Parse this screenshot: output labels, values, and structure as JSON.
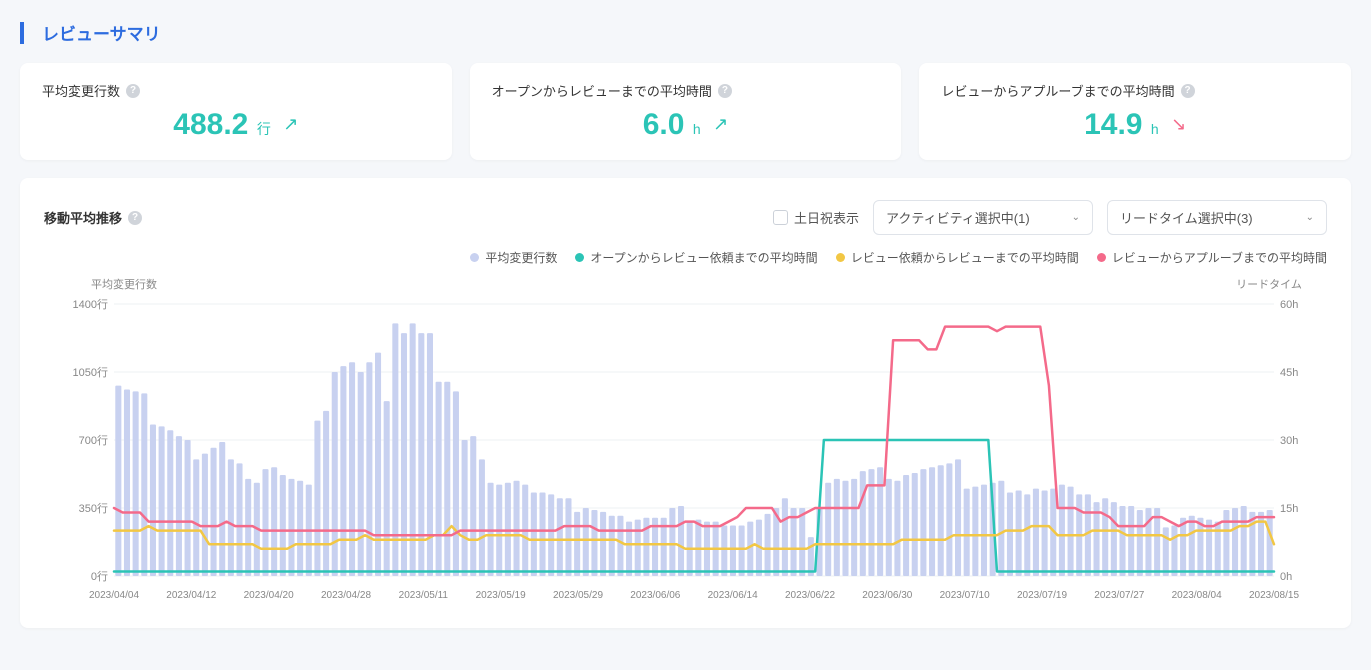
{
  "section_title": "レビューサマリ",
  "cards": [
    {
      "title": "平均変更行数",
      "value": "488.2",
      "unit": "行",
      "trend": "up",
      "color": "#2bc4b6"
    },
    {
      "title": "オープンからレビューまでの平均時間",
      "value": "6.0",
      "unit": "h",
      "trend": "up",
      "color": "#2bc4b6"
    },
    {
      "title": "レビューからアプルーブまでの平均時間",
      "value": "14.9",
      "unit": "h",
      "trend": "down",
      "color": "#2bc4b6"
    }
  ],
  "chart": {
    "title": "移動平均推移",
    "checkbox_label": "土日祝表示",
    "select1": "アクティビティ選択中(1)",
    "select2": "リードタイム選択中(3)",
    "legend": [
      {
        "label": "平均変更行数",
        "color": "#c8d1f0"
      },
      {
        "label": "オープンからレビュー依頼までの平均時間",
        "color": "#2bc4b6"
      },
      {
        "label": "レビュー依頼からレビューまでの平均時間",
        "color": "#f2c744"
      },
      {
        "label": "レビューからアプルーブまでの平均時間",
        "color": "#f46a8a"
      }
    ],
    "y_left_title": "平均変更行数",
    "y_right_title": "リードタイム",
    "y_left_ticks": [
      "1400行",
      "1050行",
      "700行",
      "350行",
      "0行"
    ],
    "y_right_ticks": [
      "60h",
      "45h",
      "30h",
      "15h",
      "0h"
    ],
    "x_ticks": [
      "2023/04/04",
      "2023/04/12",
      "2023/04/20",
      "2023/04/28",
      "2023/05/11",
      "2023/05/19",
      "2023/05/29",
      "2023/06/06",
      "2023/06/14",
      "2023/06/22",
      "2023/06/30",
      "2023/07/10",
      "2023/07/19",
      "2023/07/27",
      "2023/08/04",
      "2023/08/15"
    ],
    "bar_color": "#c8d1f0",
    "line_teal": "#2bc4b6",
    "line_yellow": "#f2c744",
    "line_pink": "#f46a8a",
    "grid_color": "#eef0f3",
    "bars": [
      980,
      960,
      950,
      940,
      780,
      770,
      750,
      720,
      700,
      600,
      630,
      660,
      690,
      600,
      580,
      500,
      480,
      550,
      560,
      520,
      500,
      490,
      470,
      800,
      850,
      1050,
      1080,
      1100,
      1050,
      1100,
      1150,
      900,
      1300,
      1250,
      1300,
      1250,
      1250,
      1000,
      1000,
      950,
      700,
      720,
      600,
      480,
      470,
      480,
      490,
      470,
      430,
      430,
      420,
      400,
      400,
      330,
      350,
      340,
      330,
      310,
      310,
      280,
      290,
      300,
      300,
      300,
      350,
      360,
      280,
      290,
      280,
      280,
      260,
      260,
      260,
      280,
      290,
      320,
      350,
      400,
      350,
      350,
      200,
      350,
      480,
      500,
      490,
      500,
      540,
      550,
      560,
      500,
      490,
      520,
      530,
      550,
      560,
      570,
      580,
      600,
      450,
      460,
      470,
      480,
      490,
      430,
      440,
      420,
      450,
      440,
      450,
      470,
      460,
      420,
      420,
      380,
      400,
      380,
      360,
      360,
      340,
      350,
      350,
      250,
      260,
      300,
      310,
      300,
      290,
      280,
      340,
      350,
      360,
      330,
      330,
      340
    ],
    "teal": [
      1,
      1,
      1,
      1,
      1,
      1,
      1,
      1,
      1,
      1,
      1,
      1,
      1,
      1,
      1,
      1,
      1,
      1,
      1,
      1,
      1,
      1,
      1,
      1,
      1,
      1,
      1,
      1,
      1,
      1,
      1,
      1,
      1,
      1,
      1,
      1,
      1,
      1,
      1,
      1,
      1,
      1,
      1,
      1,
      1,
      1,
      1,
      1,
      1,
      1,
      1,
      1,
      1,
      1,
      1,
      1,
      1,
      1,
      1,
      1,
      1,
      1,
      1,
      1,
      1,
      1,
      1,
      1,
      1,
      1,
      1,
      1,
      1,
      1,
      1,
      1,
      1,
      1,
      1,
      1,
      1,
      1,
      30,
      30,
      30,
      30,
      30,
      30,
      30,
      30,
      30,
      30,
      30,
      30,
      30,
      30,
      30,
      30,
      30,
      30,
      30,
      30,
      1,
      1,
      1,
      1,
      1,
      1,
      1,
      1,
      1,
      1,
      1,
      1,
      1,
      1,
      1,
      1,
      1,
      1,
      1,
      1,
      1,
      1,
      1,
      1,
      1,
      1,
      1,
      1,
      1,
      1,
      1,
      1,
      1
    ],
    "yellow": [
      10,
      10,
      10,
      10,
      11,
      10,
      10,
      10,
      10,
      10,
      10,
      7,
      7,
      7,
      7,
      7,
      7,
      6,
      6,
      6,
      6,
      7,
      7,
      7,
      7,
      7,
      8,
      8,
      8,
      9,
      8,
      8,
      8,
      8,
      8,
      8,
      8,
      9,
      9,
      11,
      9,
      8,
      8,
      9,
      9,
      9,
      9,
      9,
      8,
      8,
      8,
      8,
      8,
      8,
      8,
      8,
      8,
      8,
      8,
      7,
      7,
      7,
      7,
      7,
      7,
      7,
      6,
      6,
      6,
      6,
      6,
      6,
      6,
      6,
      7,
      6,
      6,
      6,
      6,
      6,
      6,
      7,
      7,
      7,
      7,
      7,
      7,
      7,
      7,
      7,
      7,
      8,
      8,
      8,
      8,
      8,
      8,
      9,
      9,
      9,
      9,
      9,
      9,
      10,
      10,
      10,
      11,
      11,
      11,
      9,
      9,
      9,
      9,
      10,
      10,
      10,
      10,
      9,
      9,
      9,
      9,
      9,
      8,
      9,
      9,
      10,
      10,
      10,
      10,
      10,
      11,
      11,
      12,
      12,
      7
    ],
    "pink": [
      15,
      14,
      14,
      14,
      12,
      12,
      12,
      12,
      12,
      12,
      11,
      11,
      11,
      12,
      11,
      11,
      11,
      10,
      10,
      10,
      10,
      10,
      10,
      10,
      10,
      10,
      10,
      10,
      10,
      10,
      9,
      9,
      9,
      9,
      9,
      9,
      9,
      9,
      9,
      9,
      10,
      10,
      10,
      10,
      10,
      10,
      10,
      10,
      10,
      10,
      10,
      10,
      11,
      11,
      11,
      11,
      10,
      10,
      10,
      10,
      10,
      10,
      11,
      11,
      11,
      11,
      12,
      12,
      11,
      11,
      11,
      12,
      13,
      15,
      15,
      15,
      15,
      12,
      13,
      13,
      14,
      15,
      15,
      15,
      15,
      15,
      15,
      20,
      20,
      20,
      52,
      52,
      52,
      52,
      50,
      50,
      55,
      55,
      55,
      55,
      55,
      55,
      54,
      55,
      55,
      55,
      55,
      55,
      42,
      15,
      15,
      15,
      14,
      14,
      14,
      13,
      11,
      11,
      11,
      11,
      13,
      13,
      12,
      11,
      12,
      12,
      11,
      11,
      12,
      12,
      12,
      12,
      13,
      13,
      13
    ]
  }
}
